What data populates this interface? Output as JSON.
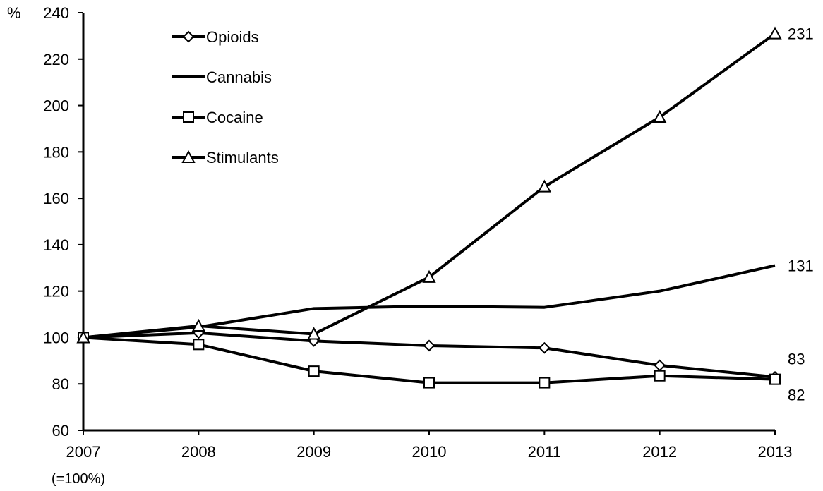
{
  "chart_data": {
    "type": "line",
    "y_unit_label": "%",
    "x": [
      "2007",
      "2008",
      "2009",
      "2010",
      "2011",
      "2012",
      "2013"
    ],
    "x_note": "(=100%)",
    "ylim": [
      60,
      240
    ],
    "yticks": [
      60,
      80,
      100,
      120,
      140,
      160,
      180,
      200,
      220,
      240
    ],
    "grid": false,
    "legend_placement": "top-left",
    "series": [
      {
        "name": "Opioids",
        "marker": "diamond",
        "values": [
          100,
          102,
          98.5,
          96.5,
          95.5,
          88,
          83
        ],
        "end_label": "83"
      },
      {
        "name": "Cannabis",
        "marker": "none",
        "values": [
          100,
          104.5,
          112.5,
          113.5,
          113,
          120,
          131
        ],
        "end_label": "131"
      },
      {
        "name": "Cocaine",
        "marker": "square",
        "values": [
          100,
          97,
          85.5,
          80.5,
          80.5,
          83.5,
          82
        ],
        "end_label": "82"
      },
      {
        "name": "Stimulants",
        "marker": "triangle",
        "values": [
          100,
          105,
          101.5,
          126,
          165,
          195,
          231
        ],
        "end_label": "231"
      }
    ]
  }
}
